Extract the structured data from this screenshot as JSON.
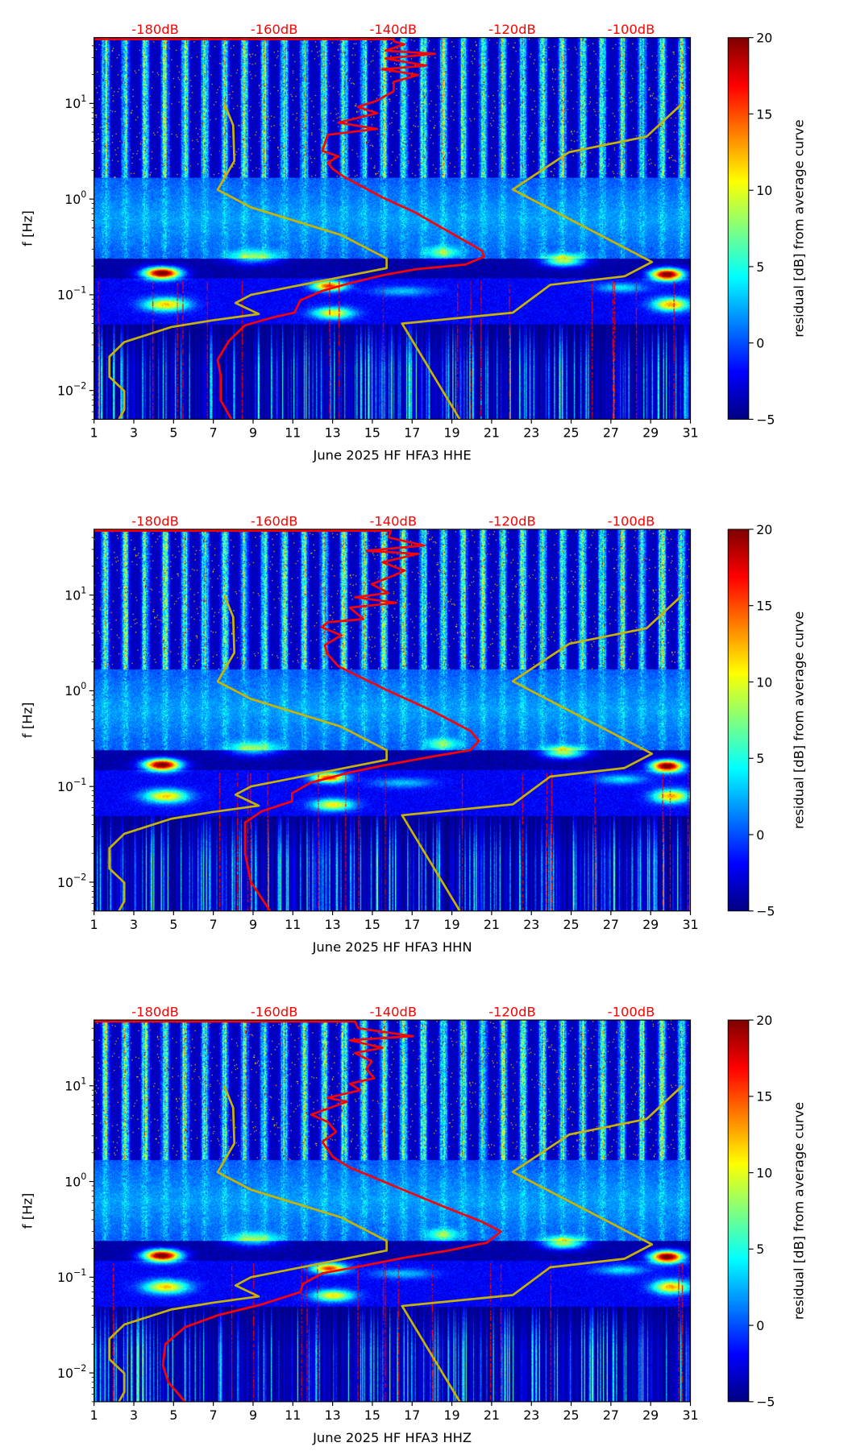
{
  "colors": {
    "noise_model": "#c8b400",
    "psd_curve": "#ff0000",
    "top_labels": "#ff0000"
  },
  "chart_data": [
    {
      "type": "heatmap",
      "title": "",
      "xlabel": "June 2025 HF HFA3  HHE",
      "ylabel": "f [Hz]",
      "x_range": [
        1,
        31
      ],
      "y_range_hz": [
        0.005,
        48.7
      ],
      "y_scale": "log",
      "x_ticks": [
        "1",
        "3",
        "5",
        "7",
        "9",
        "11",
        "13",
        "15",
        "17",
        "19",
        "21",
        "23",
        "25",
        "27",
        "29",
        "31"
      ],
      "y_ticks": [
        {
          "base": "10",
          "exp": "1"
        },
        {
          "base": "10",
          "exp": "0"
        },
        {
          "base": "10",
          "exp": "−1"
        },
        {
          "base": "10",
          "exp": "−2"
        }
      ],
      "top_axis_labels": [
        "-180dB",
        "-160dB",
        "-140dB",
        "-120dB",
        "-100dB"
      ],
      "top_axis_values_db": [
        -180,
        -160,
        -140,
        -120,
        -100
      ],
      "colorbar": {
        "label": "residual [dB] from average curve",
        "range": [
          -5,
          20
        ],
        "ticks": [
          "20",
          "15",
          "10",
          "5",
          "0",
          "−5"
        ],
        "tick_values": [
          20,
          15,
          10,
          5,
          0,
          -5
        ],
        "colormap": "jet"
      },
      "psd_curve_db_hz": [
        [
          -190.3,
          47
        ],
        [
          -139.9,
          47
        ],
        [
          -139.9,
          44.6
        ],
        [
          -138.1,
          41.4
        ],
        [
          -141.3,
          35.6
        ],
        [
          -133.0,
          33.0
        ],
        [
          -141.3,
          29.5
        ],
        [
          -134.4,
          24.8
        ],
        [
          -141.8,
          22.7
        ],
        [
          -135.8,
          19.8
        ],
        [
          -139.9,
          16.8
        ],
        [
          -139.9,
          13.4
        ],
        [
          -142.7,
          10.7
        ],
        [
          -145.9,
          9.2
        ],
        [
          -142.7,
          7.9
        ],
        [
          -149.2,
          6.3
        ],
        [
          -142.7,
          5.4
        ],
        [
          -151.0,
          4.7
        ],
        [
          -151.9,
          3.2
        ],
        [
          -149.2,
          2.8
        ],
        [
          -151.0,
          2.4
        ],
        [
          -150.1,
          2.05
        ],
        [
          -148.2,
          1.7
        ],
        [
          -141.8,
          1.04
        ],
        [
          -136.2,
          0.72
        ],
        [
          -132.5,
          0.53
        ],
        [
          -127.9,
          0.365
        ],
        [
          -125.1,
          0.29
        ],
        [
          -124.7,
          0.25
        ],
        [
          -127.9,
          0.207
        ],
        [
          -136.2,
          0.185
        ],
        [
          -141.8,
          0.16
        ],
        [
          -147.3,
          0.132
        ],
        [
          -151.9,
          0.11
        ],
        [
          -155.6,
          0.0875
        ],
        [
          -156.6,
          0.065
        ],
        [
          -160.2,
          0.058
        ],
        [
          -164.9,
          0.048
        ],
        [
          -167.6,
          0.033
        ],
        [
          -169.5,
          0.021
        ],
        [
          -169.0,
          0.0144
        ],
        [
          -169.0,
          0.0079
        ],
        [
          -167.2,
          0.005
        ]
      ]
    },
    {
      "type": "heatmap",
      "title": "",
      "xlabel": "June 2025 HF HFA3  HHN",
      "ylabel": "f [Hz]",
      "x_range": [
        1,
        31
      ],
      "y_range_hz": [
        0.005,
        48.7
      ],
      "y_scale": "log",
      "x_ticks": [
        "1",
        "3",
        "5",
        "7",
        "9",
        "11",
        "13",
        "15",
        "17",
        "19",
        "21",
        "23",
        "25",
        "27",
        "29",
        "31"
      ],
      "y_ticks": [
        {
          "base": "10",
          "exp": "1"
        },
        {
          "base": "10",
          "exp": "0"
        },
        {
          "base": "10",
          "exp": "−1"
        },
        {
          "base": "10",
          "exp": "−2"
        }
      ],
      "top_axis_labels": [
        "-180dB",
        "-160dB",
        "-140dB",
        "-120dB",
        "-100dB"
      ],
      "top_axis_values_db": [
        -180,
        -160,
        -140,
        -120,
        -100
      ],
      "colorbar": {
        "label": "residual [dB] from average curve",
        "range": [
          -5,
          20
        ],
        "ticks": [
          "20",
          "15",
          "10",
          "5",
          "0",
          "−5"
        ],
        "tick_values": [
          20,
          15,
          10,
          5,
          0,
          -5
        ],
        "colormap": "jet"
      },
      "psd_curve_db_hz": [
        [
          -190.3,
          47
        ],
        [
          -140.4,
          47
        ],
        [
          -140.8,
          40
        ],
        [
          -134.8,
          33
        ],
        [
          -144.5,
          29
        ],
        [
          -135.8,
          27
        ],
        [
          -141.8,
          22
        ],
        [
          -138.1,
          18
        ],
        [
          -139.9,
          16
        ],
        [
          -143.6,
          13
        ],
        [
          -140.8,
          10.5
        ],
        [
          -146.4,
          9.5
        ],
        [
          -139.5,
          8.3
        ],
        [
          -147.3,
          7.4
        ],
        [
          -145.0,
          5.6
        ],
        [
          -151.0,
          5.2
        ],
        [
          -152.0,
          4.6
        ],
        [
          -148.7,
          3.8
        ],
        [
          -151.5,
          3.0
        ],
        [
          -151.0,
          2.4
        ],
        [
          -149.2,
          1.8
        ],
        [
          -140.8,
          1.0
        ],
        [
          -133.5,
          0.62
        ],
        [
          -127.0,
          0.38
        ],
        [
          -125.6,
          0.3
        ],
        [
          -127.0,
          0.24
        ],
        [
          -133.5,
          0.205
        ],
        [
          -141.8,
          0.165
        ],
        [
          -147.3,
          0.14
        ],
        [
          -153.8,
          0.11
        ],
        [
          -157.0,
          0.085
        ],
        [
          -157.0,
          0.07
        ],
        [
          -162.1,
          0.055
        ],
        [
          -164.9,
          0.042
        ],
        [
          -164.9,
          0.02
        ],
        [
          -163.9,
          0.01
        ],
        [
          -160.7,
          0.005
        ]
      ]
    },
    {
      "type": "heatmap",
      "title": "",
      "xlabel": "June 2025 HF HFA3  HHZ",
      "ylabel": "f [Hz]",
      "x_range": [
        1,
        31
      ],
      "y_range_hz": [
        0.005,
        48.7
      ],
      "y_scale": "log",
      "x_ticks": [
        "1",
        "3",
        "5",
        "7",
        "9",
        "11",
        "13",
        "15",
        "17",
        "19",
        "21",
        "23",
        "25",
        "27",
        "29",
        "31"
      ],
      "y_ticks": [
        {
          "base": "10",
          "exp": "1"
        },
        {
          "base": "10",
          "exp": "0"
        },
        {
          "base": "10",
          "exp": "−1"
        },
        {
          "base": "10",
          "exp": "−2"
        }
      ],
      "top_axis_labels": [
        "-180dB",
        "-160dB",
        "-140dB",
        "-120dB",
        "-100dB"
      ],
      "top_axis_values_db": [
        -180,
        -160,
        -140,
        -120,
        -100
      ],
      "colorbar": {
        "label": "residual [dB] from average curve",
        "range": [
          -5,
          20
        ],
        "ticks": [
          "20",
          "15",
          "10",
          "5",
          "0",
          "−5"
        ],
        "tick_values": [
          20,
          15,
          10,
          5,
          0,
          -5
        ],
        "colormap": "jet"
      },
      "psd_curve_db_hz": [
        [
          -190.3,
          47
        ],
        [
          -146.4,
          47
        ],
        [
          -145.9,
          40
        ],
        [
          -136.7,
          33
        ],
        [
          -147.3,
          30
        ],
        [
          -141.8,
          25
        ],
        [
          -146.4,
          22
        ],
        [
          -143.6,
          18
        ],
        [
          -144.5,
          15
        ],
        [
          -143.2,
          12
        ],
        [
          -147.3,
          10.5
        ],
        [
          -145.5,
          9
        ],
        [
          -151.0,
          7.5
        ],
        [
          -147.8,
          6.8
        ],
        [
          -153.8,
          5
        ],
        [
          -151.0,
          4.2
        ],
        [
          -149.6,
          3.3
        ],
        [
          -151.9,
          2.6
        ],
        [
          -150.1,
          1.8
        ],
        [
          -147.3,
          1.4
        ],
        [
          -139.9,
          0.9
        ],
        [
          -131.6,
          0.55
        ],
        [
          -125.1,
          0.38
        ],
        [
          -121.9,
          0.3
        ],
        [
          -124.2,
          0.23
        ],
        [
          -130.7,
          0.19
        ],
        [
          -138.1,
          0.16
        ],
        [
          -145.5,
          0.13
        ],
        [
          -151.9,
          0.11
        ],
        [
          -155.2,
          0.085
        ],
        [
          -155.6,
          0.07
        ],
        [
          -162.1,
          0.052
        ],
        [
          -169.5,
          0.04
        ],
        [
          -175.0,
          0.03
        ],
        [
          -178.3,
          0.02
        ],
        [
          -178.7,
          0.012
        ],
        [
          -177.8,
          0.008
        ],
        [
          -175.0,
          0.005
        ]
      ]
    }
  ],
  "noise_models": {
    "low_db_hz": [
      [
        -168.4,
        10
      ],
      [
        -166.9,
        5.9
      ],
      [
        -166.7,
        2.5
      ],
      [
        -169.5,
        1.25
      ],
      [
        -163.9,
        0.82
      ],
      [
        -148.7,
        0.42
      ],
      [
        -141.1,
        0.24
      ],
      [
        -141.1,
        0.19
      ],
      [
        -163.9,
        0.1
      ],
      [
        -166.5,
        0.082
      ],
      [
        -162.6,
        0.063
      ],
      [
        -170.4,
        0.054
      ],
      [
        -177.3,
        0.046
      ],
      [
        -185.2,
        0.032
      ],
      [
        -187.7,
        0.0226
      ],
      [
        -187.7,
        0.0139
      ],
      [
        -185.2,
        0.0099
      ],
      [
        -185.2,
        0.0063
      ],
      [
        -186.1,
        0.005
      ]
    ],
    "high_db_hz": [
      [
        -91.4,
        10
      ],
      [
        -97.4,
        4.5
      ],
      [
        -110.4,
        3.1
      ],
      [
        -119.9,
        1.26
      ],
      [
        -96.5,
        0.22
      ],
      [
        -101.1,
        0.156
      ],
      [
        -113.6,
        0.127
      ],
      [
        -119.9,
        0.065
      ],
      [
        -138.5,
        0.05
      ],
      [
        -128.8,
        0.005
      ]
    ]
  }
}
